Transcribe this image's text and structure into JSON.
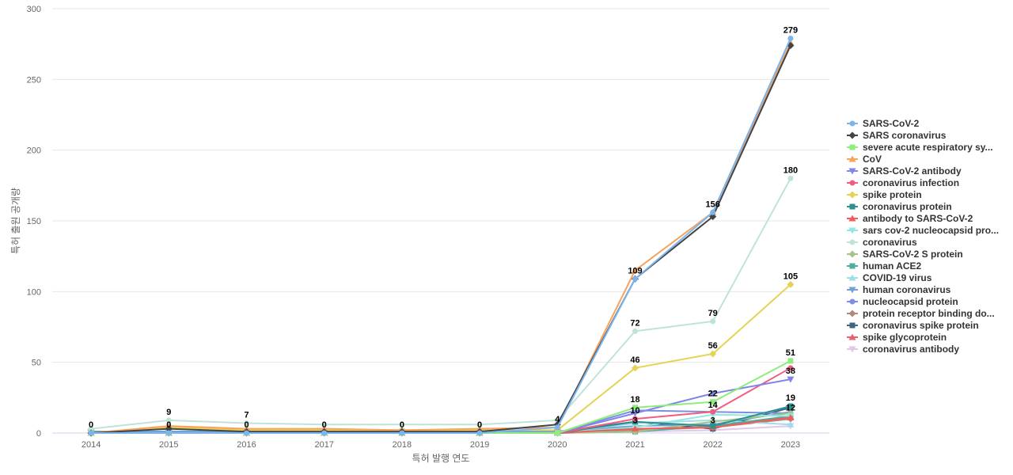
{
  "chart_data": {
    "type": "line",
    "title": "",
    "xlabel": "특허 발행 연도",
    "ylabel": "특허 출원 공개량",
    "x": [
      "2014",
      "2015",
      "2016",
      "2017",
      "2018",
      "2019",
      "2020",
      "2021",
      "2022",
      "2023"
    ],
    "ylim": [
      0,
      300
    ],
    "yticks": [
      0,
      50,
      100,
      150,
      200,
      250,
      300
    ],
    "grid": true,
    "legend_position": "right",
    "series": [
      {
        "name": "SARS-CoV-2",
        "color": "#7cb5ec",
        "marker": "circle",
        "values": [
          0,
          0,
          0,
          0,
          0,
          0,
          4,
          109,
          156,
          279
        ]
      },
      {
        "name": "SARS coronavirus",
        "color": "#434348",
        "marker": "diamond",
        "values": [
          0,
          3,
          1,
          1,
          1,
          1,
          6,
          109,
          153,
          274
        ]
      },
      {
        "name": "severe acute respiratory sy...",
        "color": "#90ed7d",
        "marker": "square",
        "values": [
          0,
          0,
          0,
          0,
          0,
          0,
          0,
          18,
          22,
          51
        ]
      },
      {
        "name": "CoV",
        "color": "#f7a35c",
        "marker": "triangle",
        "values": [
          0,
          5,
          3,
          3,
          2,
          3,
          4,
          115,
          156,
          276
        ]
      },
      {
        "name": "SARS-CoV-2 antibody",
        "color": "#8085e9",
        "marker": "triangle-down",
        "values": [
          0,
          0,
          0,
          0,
          0,
          0,
          0,
          14,
          28,
          38
        ]
      },
      {
        "name": "coronavirus infection",
        "color": "#f15c80",
        "marker": "circle",
        "values": [
          0,
          0,
          0,
          0,
          0,
          0,
          0,
          10,
          15,
          46
        ]
      },
      {
        "name": "spike protein",
        "color": "#e4d354",
        "marker": "diamond",
        "values": [
          0,
          4,
          2,
          2,
          2,
          2,
          2,
          46,
          56,
          105
        ]
      },
      {
        "name": "coronavirus protein",
        "color": "#2b908f",
        "marker": "square",
        "values": [
          0,
          0,
          0,
          0,
          0,
          0,
          0,
          8,
          5,
          19
        ]
      },
      {
        "name": "antibody to SARS-CoV-2",
        "color": "#f45b5b",
        "marker": "triangle",
        "values": [
          0,
          0,
          0,
          0,
          0,
          0,
          0,
          3,
          4,
          11
        ]
      },
      {
        "name": "sars cov-2 nucleocapsid pro...",
        "color": "#91e8e1",
        "marker": "triangle-down",
        "values": [
          0,
          0,
          0,
          0,
          0,
          0,
          0,
          4,
          13,
          12
        ]
      },
      {
        "name": "coronavirus",
        "color": "#bfe3d8",
        "marker": "circle",
        "values": [
          3,
          9,
          7,
          6,
          6,
          6,
          9,
          72,
          79,
          180
        ]
      },
      {
        "name": "SARS-CoV-2 S protein",
        "color": "#a6c48a",
        "marker": "diamond",
        "values": [
          0,
          0,
          0,
          0,
          0,
          0,
          0,
          1,
          8,
          14
        ]
      },
      {
        "name": "human ACE2",
        "color": "#4daf9b",
        "marker": "square",
        "values": [
          0,
          0,
          0,
          0,
          0,
          0,
          0,
          1,
          5,
          12
        ]
      },
      {
        "name": "COVID-19 virus",
        "color": "#9fdcec",
        "marker": "triangle",
        "values": [
          0,
          0,
          0,
          0,
          0,
          0,
          0,
          7,
          9,
          6
        ]
      },
      {
        "name": "human coronavirus",
        "color": "#6fa0d8",
        "marker": "triangle-down",
        "values": [
          1,
          1,
          1,
          1,
          1,
          1,
          1,
          5,
          6,
          15
        ]
      },
      {
        "name": "nucleocapsid protein",
        "color": "#7b8ee0",
        "marker": "circle",
        "values": [
          0,
          0,
          0,
          0,
          0,
          0,
          0,
          16,
          15,
          14
        ]
      },
      {
        "name": "protein receptor binding do...",
        "color": "#b08a7c",
        "marker": "diamond",
        "values": [
          0,
          0,
          0,
          0,
          0,
          0,
          0,
          2,
          4,
          10
        ]
      },
      {
        "name": "coronavirus spike protein",
        "color": "#3d6680",
        "marker": "square",
        "values": [
          1,
          1,
          1,
          1,
          1,
          1,
          1,
          8,
          3,
          18
        ]
      },
      {
        "name": "spike glycoprotein",
        "color": "#e8606d",
        "marker": "triangle",
        "values": [
          0,
          0,
          0,
          0,
          0,
          0,
          0,
          2,
          5,
          11
        ]
      },
      {
        "name": "coronavirus antibody",
        "color": "#e3c6e8",
        "marker": "triangle-down",
        "values": [
          0,
          0,
          0,
          0,
          0,
          0,
          0,
          1,
          2,
          5
        ]
      }
    ],
    "data_labels": [
      {
        "x": "2014",
        "value": 0,
        "text": "0"
      },
      {
        "x": "2015",
        "value": 9,
        "text": "9"
      },
      {
        "x": "2015",
        "value": 0,
        "text": "0"
      },
      {
        "x": "2016",
        "value": 7,
        "text": "7"
      },
      {
        "x": "2016",
        "value": 0,
        "text": "0"
      },
      {
        "x": "2017",
        "value": 0,
        "text": "0"
      },
      {
        "x": "2018",
        "value": 0,
        "text": "0"
      },
      {
        "x": "2019",
        "value": 0,
        "text": "0"
      },
      {
        "x": "2020",
        "value": 4,
        "text": "4"
      },
      {
        "x": "2021",
        "value": 109,
        "text": "109"
      },
      {
        "x": "2021",
        "value": 72,
        "text": "72"
      },
      {
        "x": "2021",
        "value": 46,
        "text": "46"
      },
      {
        "x": "2021",
        "value": 18,
        "text": "18"
      },
      {
        "x": "2021",
        "value": 10,
        "text": "10"
      },
      {
        "x": "2021",
        "value": 3,
        "text": "3"
      },
      {
        "x": "2022",
        "value": 156,
        "text": "156"
      },
      {
        "x": "2022",
        "value": 79,
        "text": "79"
      },
      {
        "x": "2022",
        "value": 56,
        "text": "56"
      },
      {
        "x": "2022",
        "value": 22,
        "text": "22"
      },
      {
        "x": "2022",
        "value": 14,
        "text": "14"
      },
      {
        "x": "2022",
        "value": 3,
        "text": "3"
      },
      {
        "x": "2023",
        "value": 279,
        "text": "279"
      },
      {
        "x": "2023",
        "value": 180,
        "text": "180"
      },
      {
        "x": "2023",
        "value": 105,
        "text": "105"
      },
      {
        "x": "2023",
        "value": 51,
        "text": "51"
      },
      {
        "x": "2023",
        "value": 38,
        "text": "38"
      },
      {
        "x": "2023",
        "value": 19,
        "text": "19"
      },
      {
        "x": "2023",
        "value": 12,
        "text": "12"
      }
    ]
  }
}
